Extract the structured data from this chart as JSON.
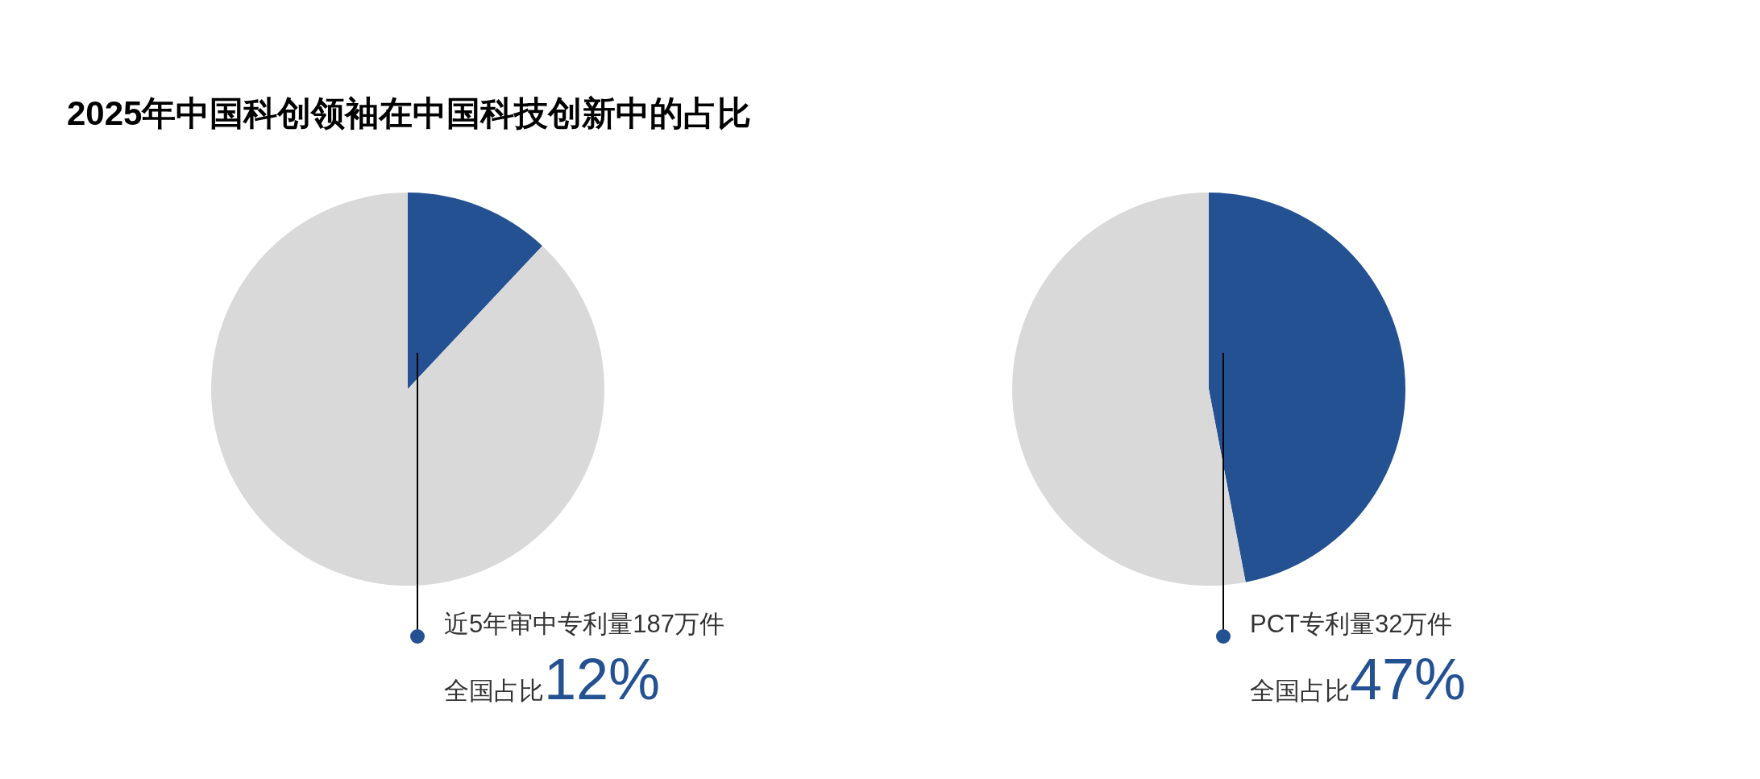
{
  "chart_data": [
    {
      "type": "pie",
      "title": "2025年中国科创领袖在中国科技创新中的占比",
      "categories": [
        null,
        null
      ],
      "values": [
        12,
        88
      ],
      "colors": [
        "#235192",
        "#d9d9d9"
      ],
      "annotations": [
        "近5年审中专利量187万件",
        "全国占比",
        "12%"
      ]
    },
    {
      "type": "pie",
      "categories": [
        null,
        null
      ],
      "values": [
        47,
        53
      ],
      "colors": [
        "#235192",
        "#d9d9d9"
      ],
      "annotations": [
        "PCT专利量32万件",
        "全国占比",
        "47%"
      ]
    }
  ]
}
